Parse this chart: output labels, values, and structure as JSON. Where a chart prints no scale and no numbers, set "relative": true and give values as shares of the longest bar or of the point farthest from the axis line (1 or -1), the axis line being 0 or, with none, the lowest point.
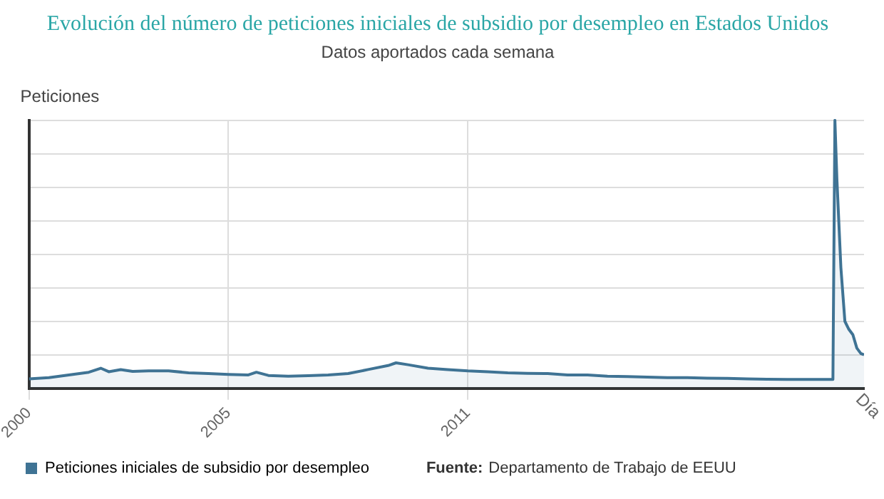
{
  "chart_data": {
    "type": "area",
    "title": "Evolución del número de peticiones iniciales de subsidio por desempleo en Estados Unidos",
    "subtitle": "Datos aportados cada semana",
    "ylabel": "Peticiones",
    "xlabel": "Día",
    "relative": true,
    "grid": true,
    "legend": "bottom left",
    "marker": "none",
    "line_style": "solid",
    "xlim": [
      2000,
      2020.93
    ],
    "xticks": [
      2000,
      2005,
      2011
    ],
    "annotations": [
      "Fuente: Departamento de Trabajo de EEUU"
    ],
    "x": [
      2000.0,
      2000.5,
      2001.0,
      2001.5,
      2001.8,
      2002.0,
      2002.3,
      2002.6,
      2003.0,
      2003.5,
      2004.0,
      2004.5,
      2005.0,
      2005.5,
      2005.7,
      2006.0,
      2006.5,
      2007.0,
      2007.5,
      2008.0,
      2008.5,
      2009.0,
      2009.2,
      2009.5,
      2010.0,
      2010.5,
      2011.0,
      2011.5,
      2012.0,
      2012.5,
      2013.0,
      2013.5,
      2014.0,
      2014.5,
      2015.0,
      2015.5,
      2016.0,
      2016.5,
      2017.0,
      2017.5,
      2018.0,
      2018.5,
      2019.0,
      2019.5,
      2020.0,
      2020.15,
      2020.2,
      2020.25,
      2020.35,
      2020.45,
      2020.55,
      2020.65,
      2020.75,
      2020.85,
      2020.93
    ],
    "series": [
      {
        "name": "Peticiones iniciales de subsidio por desempleo",
        "color": "#3f7394",
        "values": [
          0.035,
          0.04,
          0.05,
          0.06,
          0.075,
          0.062,
          0.07,
          0.063,
          0.065,
          0.065,
          0.058,
          0.055,
          0.052,
          0.05,
          0.06,
          0.048,
          0.045,
          0.047,
          0.05,
          0.055,
          0.07,
          0.085,
          0.095,
          0.088,
          0.075,
          0.07,
          0.065,
          0.062,
          0.058,
          0.056,
          0.055,
          0.05,
          0.05,
          0.045,
          0.044,
          0.042,
          0.04,
          0.04,
          0.038,
          0.037,
          0.035,
          0.034,
          0.033,
          0.033,
          0.033,
          0.033,
          1,
          0.78,
          0.45,
          0.25,
          0.22,
          0.2,
          0.15,
          0.13,
          0.125
        ]
      }
    ]
  }
}
